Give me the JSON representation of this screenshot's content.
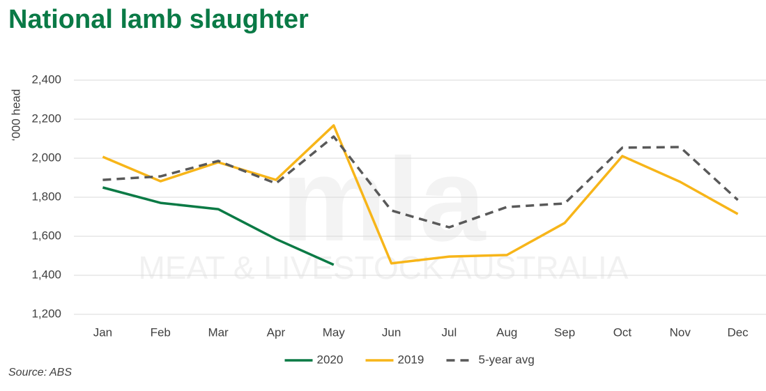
{
  "chart_data": {
    "type": "line",
    "title": "National lamb slaughter",
    "y_label": "‘000 head",
    "source": "Source: ABS",
    "watermark": {
      "logo": "mla",
      "text": "MEAT & LIVESTOCK AUSTRALIA"
    },
    "categories": [
      "Jan",
      "Feb",
      "Mar",
      "Apr",
      "May",
      "Jun",
      "Jul",
      "Aug",
      "Sep",
      "Oct",
      "Nov",
      "Dec"
    ],
    "series": [
      {
        "name": "2020",
        "color": "#0b7a45",
        "dash": false,
        "values": [
          1850,
          1771,
          1739,
          1586,
          1454,
          null,
          null,
          null,
          null,
          null,
          null,
          null
        ]
      },
      {
        "name": "2019",
        "color": "#f7b519",
        "dash": false,
        "values": [
          2007,
          1882,
          1979,
          1889,
          2168,
          1461,
          1496,
          1504,
          1668,
          2011,
          1879,
          1714
        ]
      },
      {
        "name": "5-year avg",
        "color": "#595959",
        "dash": true,
        "values": [
          1889,
          1907,
          1986,
          1871,
          2111,
          1732,
          1646,
          1750,
          1768,
          2054,
          2057,
          1786
        ]
      }
    ],
    "ylim": [
      1200,
      2400
    ],
    "yticks": [
      {
        "value": 1200,
        "label": "1,200"
      },
      {
        "value": 1400,
        "label": "1,400"
      },
      {
        "value": 1600,
        "label": "1,600"
      },
      {
        "value": 1800,
        "label": "1,800"
      },
      {
        "value": 2000,
        "label": "2,000"
      },
      {
        "value": 2200,
        "label": "2,200"
      },
      {
        "value": 2400,
        "label": "2,400"
      }
    ],
    "grid": true,
    "legend": "bottom"
  }
}
